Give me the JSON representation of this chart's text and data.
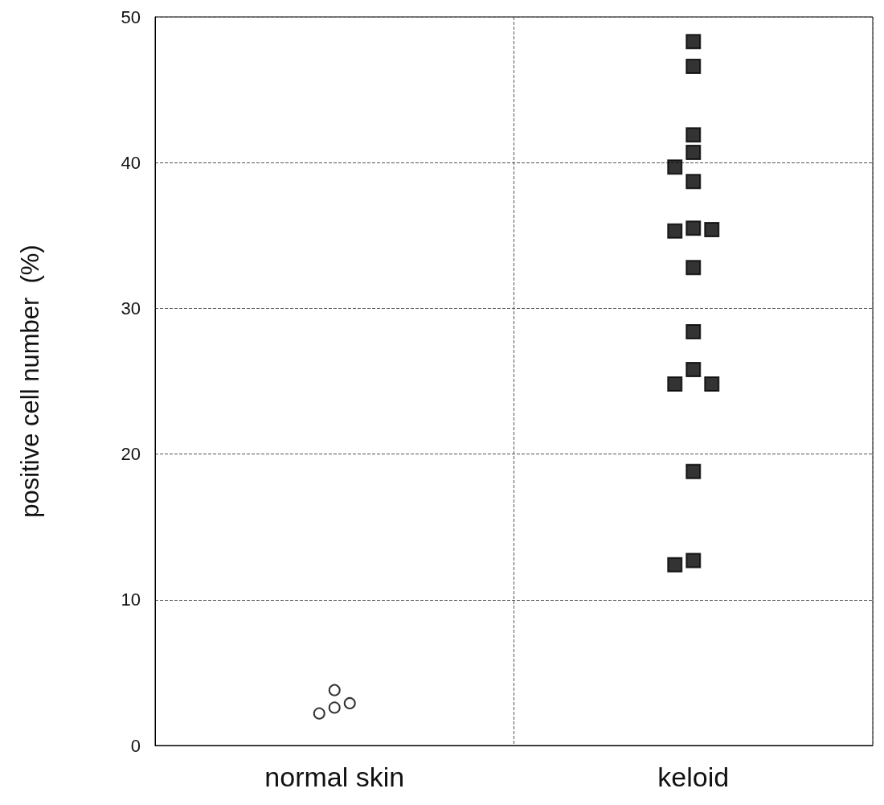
{
  "chart_data": {
    "type": "scatter",
    "ylabel": "positive cell number  (%)",
    "categories": [
      "normal skin",
      "keloid"
    ],
    "ylim": [
      0,
      50
    ],
    "yticks": [
      0,
      10,
      20,
      30,
      40,
      50
    ],
    "grid": true,
    "series": [
      {
        "color": "#000000",
        "marker": "circle",
        "x": [
          "normal skin",
          "normal skin",
          "normal skin",
          "normal skin"
        ],
        "values": [
          2.6,
          3.8,
          2.2,
          2.9
        ]
      },
      {
        "color": "#000000",
        "marker": "square",
        "x": [
          "keloid",
          "keloid",
          "keloid",
          "keloid",
          "keloid",
          "keloid",
          "keloid",
          "keloid",
          "keloid",
          "keloid",
          "keloid",
          "keloid",
          "keloid",
          "keloid",
          "keloid",
          "keloid",
          "keloid"
        ],
        "values": [
          48.3,
          46.6,
          41.9,
          40.7,
          39.7,
          38.7,
          35.5,
          35.3,
          35.4,
          32.8,
          28.4,
          25.8,
          24.8,
          24.8,
          18.8,
          12.7,
          12.4
        ]
      }
    ]
  }
}
